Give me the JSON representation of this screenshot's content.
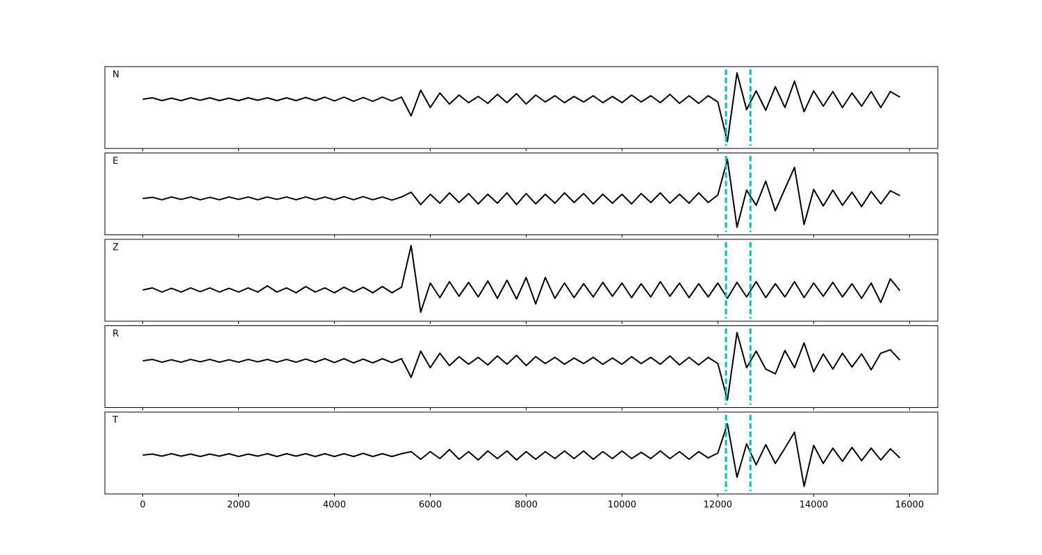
{
  "chart_data": [
    {
      "type": "line",
      "label": "N",
      "xlim": [
        -790,
        16590
      ],
      "ylim": [
        -7.1,
        4.7
      ],
      "xticks": [
        0,
        2000,
        4000,
        6000,
        8000,
        10000,
        12000,
        14000,
        16000
      ],
      "vlines": [
        12170,
        12680
      ],
      "vline_color": "#00bfbf",
      "x": [
        0,
        200,
        400,
        600,
        800,
        1000,
        1200,
        1400,
        1600,
        1800,
        2000,
        2200,
        2400,
        2600,
        2800,
        3000,
        3200,
        3400,
        3600,
        3800,
        4000,
        4200,
        4400,
        4600,
        4800,
        5000,
        5200,
        5400,
        5600,
        5800,
        6000,
        6200,
        6400,
        6600,
        6800,
        7000,
        7200,
        7400,
        7600,
        7800,
        8000,
        8200,
        8400,
        8600,
        8800,
        9000,
        9200,
        9400,
        9600,
        9800,
        10000,
        10200,
        10400,
        10600,
        10800,
        11000,
        11200,
        11400,
        11600,
        11800,
        12000,
        12200,
        12400,
        12600,
        12800,
        13000,
        13200,
        13400,
        13600,
        13800,
        14000,
        14200,
        14400,
        14600,
        14800,
        15000,
        15200,
        15400,
        15600,
        15800
      ],
      "series": [
        {
          "color": "#000000",
          "values": [
            0,
            0.2,
            -0.2,
            0.15,
            -0.2,
            0.2,
            -0.15,
            0.2,
            -0.2,
            0.15,
            -0.2,
            0.2,
            -0.15,
            0.2,
            -0.2,
            0.2,
            -0.2,
            0.25,
            -0.2,
            0.3,
            -0.25,
            0.3,
            -0.3,
            0.25,
            -0.3,
            0.3,
            -0.25,
            0.3,
            -2.4,
            1.3,
            -1.2,
            0.9,
            -0.7,
            0.6,
            -0.5,
            0.4,
            -0.6,
            0.7,
            -0.5,
            0.8,
            -0.7,
            0.6,
            -0.4,
            0.5,
            -0.5,
            0.4,
            -0.4,
            0.5,
            -0.5,
            0.4,
            -0.5,
            0.6,
            -0.4,
            0.5,
            -0.5,
            0.7,
            -0.6,
            0.5,
            -0.6,
            0.5,
            -0.4,
            -6.1,
            3.8,
            -1.5,
            1.2,
            -1.6,
            1.8,
            -1.2,
            2.6,
            -1.8,
            1.2,
            -1.0,
            1.1,
            -1.2,
            0.9,
            -1.0,
            1.1,
            -1.2,
            1.1,
            0.3
          ]
        }
      ]
    },
    {
      "type": "line",
      "label": "E",
      "xlim": [
        -790,
        16590
      ],
      "ylim": [
        -5.3,
        6.6
      ],
      "xticks": [
        0,
        2000,
        4000,
        6000,
        8000,
        10000,
        12000,
        14000,
        16000
      ],
      "vlines": [
        12170,
        12680
      ],
      "vline_color": "#00bfbf",
      "x": [
        0,
        200,
        400,
        600,
        800,
        1000,
        1200,
        1400,
        1600,
        1800,
        2000,
        2200,
        2400,
        2600,
        2800,
        3000,
        3200,
        3400,
        3600,
        3800,
        4000,
        4200,
        4400,
        4600,
        4800,
        5000,
        5200,
        5400,
        5600,
        5800,
        6000,
        6200,
        6400,
        6600,
        6800,
        7000,
        7200,
        7400,
        7600,
        7800,
        8000,
        8200,
        8400,
        8600,
        8800,
        9000,
        9200,
        9400,
        9600,
        9800,
        10000,
        10200,
        10400,
        10600,
        10800,
        11000,
        11200,
        11400,
        11600,
        11800,
        12000,
        12200,
        12400,
        12600,
        12800,
        13000,
        13200,
        13400,
        13600,
        13800,
        14000,
        14200,
        14400,
        14600,
        14800,
        15000,
        15200,
        15400,
        15600,
        15800
      ],
      "series": [
        {
          "color": "#000000",
          "values": [
            0,
            0.15,
            -0.2,
            0.2,
            -0.15,
            0.2,
            -0.2,
            0.15,
            -0.2,
            0.2,
            -0.15,
            0.2,
            -0.2,
            0.2,
            -0.15,
            0.2,
            -0.2,
            0.2,
            -0.2,
            0.2,
            -0.2,
            0.25,
            -0.2,
            0.25,
            -0.2,
            0.2,
            -0.25,
            0.2,
            0.9,
            -0.9,
            0.6,
            -0.7,
            0.8,
            -0.6,
            0.7,
            -0.8,
            0.6,
            -0.7,
            0.8,
            -0.9,
            0.7,
            -0.8,
            0.6,
            -0.7,
            0.8,
            -0.6,
            0.7,
            -0.8,
            0.6,
            -0.7,
            0.6,
            -0.8,
            0.7,
            -0.6,
            0.8,
            -0.7,
            0.6,
            -0.7,
            0.8,
            -0.6,
            0.5,
            5.7,
            -4.2,
            1.2,
            -1.0,
            2.5,
            -1.8,
            1.4,
            4.5,
            -3.8,
            1.3,
            -1.1,
            1.2,
            -1.0,
            0.9,
            -1.2,
            1.0,
            -0.8,
            1.1,
            0.4
          ]
        }
      ]
    },
    {
      "type": "line",
      "label": "Z",
      "xlim": [
        -790,
        16590
      ],
      "ylim": [
        -4.5,
        7.3
      ],
      "xticks": [
        0,
        2000,
        4000,
        6000,
        8000,
        10000,
        12000,
        14000,
        16000
      ],
      "vlines": [
        12170,
        12680
      ],
      "vline_color": "#00bfbf",
      "x": [
        0,
        200,
        400,
        600,
        800,
        1000,
        1200,
        1400,
        1600,
        1800,
        2000,
        2200,
        2400,
        2600,
        2800,
        3000,
        3200,
        3400,
        3600,
        3800,
        4000,
        4200,
        4400,
        4600,
        4800,
        5000,
        5200,
        5400,
        5600,
        5800,
        6000,
        6200,
        6400,
        6600,
        6800,
        7000,
        7200,
        7400,
        7600,
        7800,
        8000,
        8200,
        8400,
        8600,
        8800,
        9000,
        9200,
        9400,
        9600,
        9800,
        10000,
        10200,
        10400,
        10600,
        10800,
        11000,
        11200,
        11400,
        11600,
        11800,
        12000,
        12200,
        12400,
        12600,
        12800,
        13000,
        13200,
        13400,
        13600,
        13800,
        14000,
        14200,
        14400,
        14600,
        14800,
        15000,
        15200,
        15400,
        15600,
        15800
      ],
      "series": [
        {
          "color": "#000000",
          "values": [
            0,
            0.3,
            -0.3,
            0.25,
            -0.3,
            0.3,
            -0.25,
            0.3,
            -0.3,
            0.25,
            -0.3,
            0.3,
            -0.3,
            0.6,
            -0.3,
            0.3,
            -0.4,
            0.5,
            -0.3,
            0.3,
            -0.4,
            0.4,
            -0.3,
            0.4,
            -0.4,
            0.5,
            -0.4,
            0.4,
            6.4,
            -3.2,
            1.0,
            -1.1,
            1.2,
            -0.9,
            1.1,
            -1.0,
            1.3,
            -1.2,
            1.4,
            -1.3,
            1.8,
            -2.0,
            1.8,
            -1.2,
            1.0,
            -1.1,
            0.9,
            -1.0,
            1.1,
            -0.9,
            1.0,
            -1.1,
            0.9,
            -1.0,
            1.2,
            -0.9,
            1.0,
            -1.1,
            0.9,
            -1.0,
            1.0,
            -1.2,
            1.1,
            -1.0,
            1.2,
            -1.1,
            0.9,
            -1.0,
            1.2,
            -1.1,
            1.0,
            -0.9,
            1.1,
            -1.0,
            0.9,
            -1.2,
            1.0,
            -1.8,
            1.6,
            -0.1
          ]
        }
      ]
    },
    {
      "type": "line",
      "label": "R",
      "xlim": [
        -790,
        16590
      ],
      "ylim": [
        -6.8,
        5.1
      ],
      "xticks": [
        0,
        2000,
        4000,
        6000,
        8000,
        10000,
        12000,
        14000,
        16000
      ],
      "vlines": [
        12170,
        12680
      ],
      "vline_color": "#00bfbf",
      "x": [
        0,
        200,
        400,
        600,
        800,
        1000,
        1200,
        1400,
        1600,
        1800,
        2000,
        2200,
        2400,
        2600,
        2800,
        3000,
        3200,
        3400,
        3600,
        3800,
        4000,
        4200,
        4400,
        4600,
        4800,
        5000,
        5200,
        5400,
        5600,
        5800,
        6000,
        6200,
        6400,
        6600,
        6800,
        7000,
        7200,
        7400,
        7600,
        7800,
        8000,
        8200,
        8400,
        8600,
        8800,
        9000,
        9200,
        9400,
        9600,
        9800,
        10000,
        10200,
        10400,
        10600,
        10800,
        11000,
        11200,
        11400,
        11600,
        11800,
        12000,
        12200,
        12400,
        12600,
        12800,
        13000,
        13200,
        13400,
        13600,
        13800,
        14000,
        14200,
        14400,
        14600,
        14800,
        15000,
        15200,
        15400,
        15600,
        15800
      ],
      "series": [
        {
          "color": "#000000",
          "values": [
            0,
            0.2,
            -0.2,
            0.15,
            -0.2,
            0.2,
            -0.15,
            0.2,
            -0.2,
            0.15,
            -0.2,
            0.2,
            -0.15,
            0.2,
            -0.2,
            0.2,
            -0.2,
            0.25,
            -0.2,
            0.3,
            -0.25,
            0.3,
            -0.3,
            0.25,
            -0.3,
            0.3,
            -0.25,
            0.3,
            -2.4,
            1.4,
            -1.0,
            1.1,
            -0.7,
            0.6,
            -0.5,
            0.5,
            -0.6,
            0.7,
            -0.5,
            0.8,
            -0.7,
            0.6,
            -0.4,
            0.5,
            -0.5,
            0.4,
            -0.4,
            0.5,
            -0.5,
            0.4,
            -0.5,
            0.6,
            -0.4,
            0.5,
            -0.5,
            0.7,
            -0.6,
            0.5,
            -0.6,
            0.5,
            -0.4,
            -5.7,
            4.1,
            -1.0,
            1.4,
            -1.2,
            -1.9,
            1.5,
            -1.0,
            2.6,
            -1.6,
            1.0,
            -1.2,
            1.1,
            -0.9,
            1.0,
            -1.3,
            1.1,
            1.6,
            0.1
          ]
        }
      ]
    },
    {
      "type": "line",
      "label": "T",
      "xlim": [
        -790,
        16590
      ],
      "ylim": [
        -5.6,
        6.2
      ],
      "xticks": [
        0,
        2000,
        4000,
        6000,
        8000,
        10000,
        12000,
        14000,
        16000
      ],
      "vlines": [
        12170,
        12680
      ],
      "vline_color": "#00bfbf",
      "x": [
        0,
        200,
        400,
        600,
        800,
        1000,
        1200,
        1400,
        1600,
        1800,
        2000,
        2200,
        2400,
        2600,
        2800,
        3000,
        3200,
        3400,
        3600,
        3800,
        4000,
        4200,
        4400,
        4600,
        4800,
        5000,
        5200,
        5400,
        5600,
        5800,
        6000,
        6200,
        6400,
        6600,
        6800,
        7000,
        7200,
        7400,
        7600,
        7800,
        8000,
        8200,
        8400,
        8600,
        8800,
        9000,
        9200,
        9400,
        9600,
        9800,
        10000,
        10200,
        10400,
        10600,
        10800,
        11000,
        11200,
        11400,
        11600,
        11800,
        12000,
        12200,
        12400,
        12600,
        12800,
        13000,
        13200,
        13400,
        13600,
        13800,
        14000,
        14200,
        14400,
        14600,
        14800,
        15000,
        15200,
        15400,
        15600,
        15800
      ],
      "series": [
        {
          "color": "#000000",
          "values": [
            0,
            0.15,
            -0.15,
            0.2,
            -0.15,
            0.15,
            -0.2,
            0.15,
            -0.15,
            0.2,
            -0.2,
            0.15,
            -0.15,
            0.2,
            -0.2,
            0.2,
            -0.15,
            0.2,
            -0.2,
            0.2,
            -0.2,
            0.2,
            -0.2,
            0.25,
            -0.2,
            0.2,
            -0.2,
            0.2,
            0.5,
            -0.6,
            0.5,
            -0.5,
            0.8,
            -0.6,
            0.5,
            -0.7,
            0.6,
            -0.5,
            0.6,
            -0.7,
            0.5,
            -0.6,
            0.5,
            -0.5,
            0.6,
            -0.5,
            0.6,
            -0.6,
            0.5,
            -0.5,
            0.6,
            -0.5,
            0.4,
            -0.5,
            0.6,
            -0.5,
            0.5,
            -0.6,
            0.5,
            -0.4,
            0.3,
            4.5,
            -3.2,
            1.6,
            -1.4,
            1.5,
            -1.2,
            1.0,
            3.3,
            -4.5,
            1.4,
            -1.2,
            1.0,
            -0.9,
            1.1,
            -0.8,
            1.0,
            -0.7,
            0.9,
            -0.4
          ]
        }
      ]
    }
  ]
}
